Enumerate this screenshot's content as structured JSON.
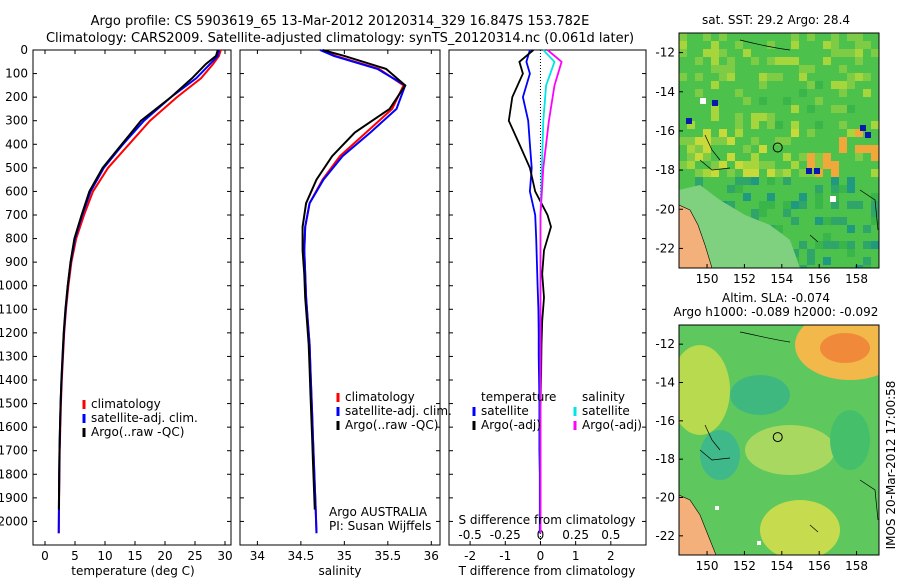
{
  "header": {
    "line1": "Argo profile: CS 5903619_65 13-Mar-2012 20120314_329 16.847S 153.782E",
    "line2": "Climatology: CARS2009. Satellite-adjusted climatology: synTS_20120314.nc (0.061d later)"
  },
  "colors": {
    "climatology": "#ff0000",
    "satellite": "#0000ff",
    "argo": "#000000",
    "sal_satellite": "#00e5e5",
    "sal_argo": "#ff00ff"
  },
  "chart_data": [
    {
      "type": "line",
      "title": "",
      "xlabel": "temperature (deg C)",
      "ylabel": "",
      "xlim": [
        -2,
        31
      ],
      "ylim": [
        2100,
        0
      ],
      "xticks": [
        0,
        5,
        10,
        15,
        20,
        25,
        30
      ],
      "yticks": [
        0,
        100,
        200,
        300,
        400,
        500,
        600,
        700,
        800,
        900,
        1000,
        1100,
        1200,
        1300,
        1400,
        1500,
        1600,
        1700,
        1800,
        1900,
        2000
      ],
      "legend": [
        "climatology",
        "satellite-adj. clim.",
        "Argo(..raw -QC)"
      ],
      "series": [
        {
          "name": "climatology",
          "x": [
            29.3,
            29.0,
            28.0,
            26.0,
            22.0,
            17.5,
            14.0,
            10.5,
            8.0,
            6.5,
            5.2,
            4.4,
            3.9,
            3.5,
            3.2,
            3.0,
            2.8,
            2.65,
            2.55,
            2.45,
            2.4,
            2.35,
            2.3
          ],
          "y": [
            0,
            25,
            60,
            120,
            200,
            300,
            400,
            500,
            600,
            700,
            800,
            900,
            1000,
            1100,
            1200,
            1300,
            1400,
            1500,
            1600,
            1700,
            1800,
            1900,
            2050
          ]
        },
        {
          "name": "satellite-adj. clim.",
          "x": [
            29.0,
            28.8,
            27.5,
            25.2,
            21.0,
            16.5,
            13.0,
            9.8,
            7.6,
            6.2,
            5.0,
            4.3,
            3.8,
            3.45,
            3.15,
            2.95,
            2.75,
            2.6,
            2.5,
            2.42,
            2.37,
            2.33,
            2.28
          ],
          "y": [
            0,
            25,
            60,
            120,
            200,
            300,
            400,
            500,
            600,
            700,
            800,
            900,
            1000,
            1100,
            1200,
            1300,
            1400,
            1500,
            1600,
            1700,
            1800,
            1900,
            2050
          ]
        },
        {
          "name": "Argo(..raw -QC)",
          "x": [
            28.8,
            28.5,
            26.8,
            24.5,
            21.0,
            16.0,
            12.8,
            9.6,
            7.4,
            6.1,
            4.9,
            4.25,
            3.78,
            3.4,
            3.12,
            2.92,
            2.74,
            2.6,
            2.5,
            2.42,
            2.36,
            2.32
          ],
          "y": [
            0,
            25,
            60,
            120,
            200,
            300,
            400,
            500,
            600,
            700,
            800,
            900,
            1000,
            1100,
            1200,
            1300,
            1400,
            1500,
            1600,
            1700,
            1800,
            1950
          ]
        }
      ]
    },
    {
      "type": "line",
      "title": "",
      "xlabel": "salinity",
      "ylabel": "",
      "xlim": [
        33.8,
        36.1
      ],
      "ylim": [
        2100,
        0
      ],
      "xticks": [
        34,
        34.5,
        35,
        35.5,
        36
      ],
      "xticklabels": [
        "34",
        "34.5",
        "35",
        "35.5",
        "36"
      ],
      "legend": [
        "climatology",
        "satellite-adj. clim.",
        "Argo(..raw -QC)"
      ],
      "annotation": [
        "Argo AUSTRALIA",
        "PI: Susan Wijffels"
      ],
      "series": [
        {
          "name": "climatology",
          "x": [
            34.75,
            34.9,
            35.4,
            35.68,
            35.55,
            35.25,
            34.95,
            34.75,
            34.6,
            34.55,
            34.54,
            34.55,
            34.56,
            34.58,
            34.6,
            34.61,
            34.62,
            34.63,
            34.64,
            34.65,
            34.66,
            34.67,
            34.68
          ],
          "y": [
            0,
            25,
            80,
            150,
            250,
            350,
            450,
            550,
            650,
            750,
            850,
            950,
            1050,
            1150,
            1250,
            1350,
            1450,
            1550,
            1650,
            1750,
            1850,
            1950,
            2050
          ]
        },
        {
          "name": "satellite-adj. clim.",
          "x": [
            34.72,
            34.88,
            35.38,
            35.7,
            35.6,
            35.3,
            34.98,
            34.76,
            34.6,
            34.55,
            34.54,
            34.55,
            34.56,
            34.58,
            34.6,
            34.61,
            34.62,
            34.63,
            34.64,
            34.65,
            34.66,
            34.67,
            34.68
          ],
          "y": [
            0,
            25,
            80,
            150,
            250,
            350,
            450,
            550,
            650,
            750,
            850,
            950,
            1050,
            1150,
            1250,
            1350,
            1450,
            1550,
            1650,
            1750,
            1850,
            1950,
            2050
          ]
        },
        {
          "name": "Argo(..raw -QC)",
          "x": [
            34.75,
            35.0,
            35.48,
            35.7,
            35.52,
            35.12,
            34.86,
            34.68,
            34.56,
            34.52,
            34.52,
            34.54,
            34.55,
            34.57,
            34.59,
            34.6,
            34.61,
            34.62,
            34.63,
            34.64,
            34.65,
            34.66
          ],
          "y": [
            0,
            25,
            80,
            150,
            250,
            350,
            450,
            550,
            650,
            750,
            850,
            950,
            1050,
            1150,
            1250,
            1350,
            1450,
            1550,
            1650,
            1750,
            1850,
            1950
          ]
        }
      ]
    },
    {
      "type": "line",
      "title": "",
      "xlabel": "T difference from climatology",
      "xlabel2": "S difference from climatology",
      "xlim": [
        -2.6,
        3.0
      ],
      "ylim": [
        2100,
        0
      ],
      "xticks": [
        -2,
        -1,
        0,
        1,
        2
      ],
      "xticks2": [
        -0.5,
        -0.25,
        0,
        0.25,
        0.5
      ],
      "xticklabels2": [
        "-0.5",
        "-0.25",
        "0",
        "0.25",
        "0.5"
      ],
      "legend": {
        "temperature_title": "temperature",
        "salinity_title": "salinity",
        "entries": [
          "satellite",
          "Argo(-adj)",
          "satellite",
          "Argo(-adj)"
        ]
      },
      "series": [
        {
          "name": "temperature satellite",
          "x": [
            -0.3,
            -0.4,
            -0.3,
            -0.5,
            -0.35,
            -0.3,
            -0.25,
            -0.3,
            -0.15,
            -0.12,
            -0.1,
            -0.08,
            -0.06,
            -0.05,
            -0.05,
            -0.04,
            -0.03,
            -0.03,
            -0.03,
            -0.02,
            -0.02,
            -0.02
          ],
          "y": [
            0,
            50,
            100,
            200,
            300,
            400,
            500,
            600,
            700,
            800,
            900,
            1000,
            1100,
            1200,
            1300,
            1400,
            1500,
            1600,
            1700,
            1800,
            1900,
            2050
          ]
        },
        {
          "name": "temperature Argo(-adj)",
          "x": [
            -0.2,
            -0.6,
            -0.5,
            -0.8,
            -0.9,
            -0.6,
            -0.3,
            -0.15,
            0.2,
            0.3,
            0.1,
            0.05,
            0.1,
            0.05,
            0.03,
            0.02,
            0.01,
            0.0,
            0.0,
            0.0,
            0.0
          ],
          "y": [
            0,
            50,
            100,
            200,
            300,
            400,
            500,
            600,
            700,
            750,
            850,
            950,
            1050,
            1150,
            1250,
            1350,
            1450,
            1550,
            1650,
            1750,
            1950
          ]
        },
        {
          "name": "salinity satellite",
          "x": [
            0.02,
            0.1,
            0.04,
            0.02,
            0.01,
            0.0,
            0.0,
            0.0,
            0.0,
            0.0,
            0.0
          ],
          "y": [
            0,
            50,
            150,
            300,
            500,
            700,
            900,
            1200,
            1500,
            1800,
            2050
          ]
        },
        {
          "name": "salinity Argo(-adj)",
          "x": [
            0.05,
            0.15,
            0.1,
            0.06,
            0.02,
            0.0,
            0.0,
            0.0,
            0.0,
            0.0,
            0.0
          ],
          "y": [
            0,
            50,
            150,
            300,
            500,
            700,
            900,
            1200,
            1500,
            1800,
            2050
          ]
        }
      ]
    },
    {
      "type": "heatmap",
      "title": "sat. SST: 29.2 Argo: 28.4",
      "xlim": [
        148.5,
        159.2
      ],
      "ylim": [
        -23,
        -11
      ],
      "xticks": [
        150,
        152,
        154,
        156,
        158
      ],
      "yticks": [
        -12,
        -14,
        -16,
        -18,
        -20,
        -22
      ],
      "argo_position": {
        "lon": 153.782,
        "lat": -16.847
      }
    },
    {
      "type": "heatmap",
      "title": "Altim. SLA: -0.074",
      "subtitle": "Argo h1000: -0.089 h2000: -0.092",
      "xlim": [
        148.5,
        159.2
      ],
      "ylim": [
        -23,
        -11
      ],
      "xticks": [
        150,
        152,
        154,
        156,
        158
      ],
      "yticks": [
        -12,
        -14,
        -16,
        -18,
        -20,
        -22
      ],
      "argo_position": {
        "lon": 153.782,
        "lat": -16.847
      }
    }
  ],
  "credit": "IMOS 20-Mar-2012 17:00:58"
}
